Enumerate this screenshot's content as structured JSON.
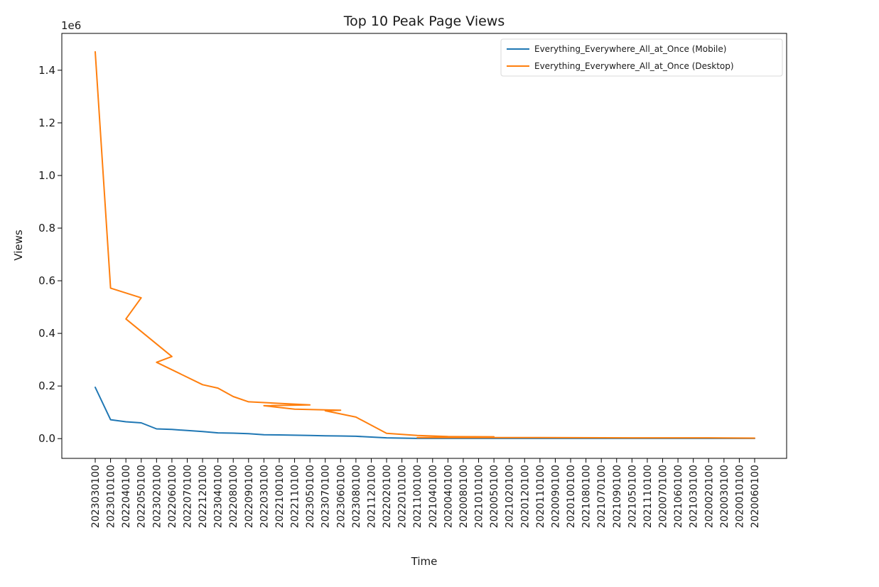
{
  "chart_data": {
    "type": "line",
    "title": "Top 10 Peak Page Views",
    "xlabel": "Time",
    "ylabel": "Views",
    "y_offset_label": "1e6",
    "y_scale_factor": 1000000,
    "yticks": [
      0.0,
      0.2,
      0.4,
      0.6,
      0.8,
      1.0,
      1.2,
      1.4
    ],
    "ylim": [
      -0.075,
      1.54
    ],
    "grid": false,
    "legend_position": "upper-right",
    "categories": [
      "2023030100",
      "2023010100",
      "2022040100",
      "2022050100",
      "2023020100",
      "2022060100",
      "2022070100",
      "2022120100",
      "2023040100",
      "2022080100",
      "2022090100",
      "2022030100",
      "2022100100",
      "2022110100",
      "2023050100",
      "2023070100",
      "2023060100",
      "2023080100",
      "2021120100",
      "2022020100",
      "2022010100",
      "2021100100",
      "2021040100",
      "2020040100",
      "2020080100",
      "2021010100",
      "2020050100",
      "2021020100",
      "2020120100",
      "2020110100",
      "2020090100",
      "2020100100",
      "2021080100",
      "2021070100",
      "2021090100",
      "2021050100",
      "2021110100",
      "2020070100",
      "2021060100",
      "2021030100",
      "2020020100",
      "2020030100",
      "2020010100",
      "2020060100"
    ],
    "series": [
      {
        "name": "Everything_Everywhere_All_at_Once (Mobile)",
        "color": "#1f77b4",
        "points": [
          [
            0,
            0.195
          ],
          [
            1,
            0.072
          ],
          [
            2,
            0.064
          ],
          [
            3,
            0.06
          ],
          [
            4,
            0.037
          ],
          [
            5,
            0.035
          ],
          [
            6,
            0.031
          ],
          [
            7,
            0.027
          ],
          [
            8,
            0.022
          ],
          [
            9,
            0.021
          ],
          [
            10,
            0.019
          ],
          [
            11,
            0.015
          ],
          [
            12,
            0.014
          ],
          [
            13,
            0.013
          ],
          [
            14,
            0.012
          ],
          [
            15,
            0.011
          ],
          [
            16,
            0.01
          ],
          [
            17,
            0.009
          ],
          [
            18,
            0.006
          ],
          [
            19,
            0.003
          ],
          [
            20,
            0.002
          ],
          [
            21,
            0.001
          ],
          [
            22,
            0.001
          ],
          [
            23,
            0.001
          ],
          [
            24,
            0.001
          ],
          [
            25,
            0.001
          ],
          [
            26,
            0.001
          ],
          [
            27,
            0.001
          ],
          [
            28,
            0.001
          ],
          [
            29,
            0.001
          ],
          [
            30,
            0.001
          ],
          [
            31,
            0.001
          ],
          [
            32,
            0.001
          ],
          [
            33,
            0.001
          ],
          [
            34,
            0.001
          ],
          [
            35,
            0.001
          ],
          [
            36,
            0.001
          ],
          [
            37,
            0.001
          ],
          [
            38,
            0.001
          ],
          [
            39,
            0.001
          ],
          [
            40,
            0.001
          ],
          [
            41,
            0.001
          ],
          [
            42,
            0.001
          ],
          [
            43,
            0.001
          ]
        ]
      },
      {
        "name": "Everything_Everywhere_All_at_Once (Desktop)",
        "color": "#ff7f0e",
        "points": [
          [
            0,
            1.47
          ],
          [
            1,
            0.572
          ],
          [
            3,
            0.535
          ],
          [
            2,
            0.455
          ],
          [
            5,
            0.312
          ],
          [
            4,
            0.29
          ],
          [
            7,
            0.205
          ],
          [
            8,
            0.192
          ],
          [
            9,
            0.16
          ],
          [
            10,
            0.14
          ],
          [
            14,
            0.128
          ],
          [
            11,
            0.125
          ],
          [
            13,
            0.112
          ],
          [
            16,
            0.108
          ],
          [
            15,
            0.106
          ],
          [
            17,
            0.082
          ],
          [
            19,
            0.02
          ],
          [
            20,
            0.016
          ],
          [
            21,
            0.012
          ],
          [
            23,
            0.008
          ],
          [
            26,
            0.007
          ],
          [
            21,
            0.004
          ],
          [
            28,
            0.004
          ],
          [
            35,
            0.003
          ],
          [
            40,
            0.003
          ],
          [
            43,
            0.002
          ]
        ]
      }
    ]
  }
}
